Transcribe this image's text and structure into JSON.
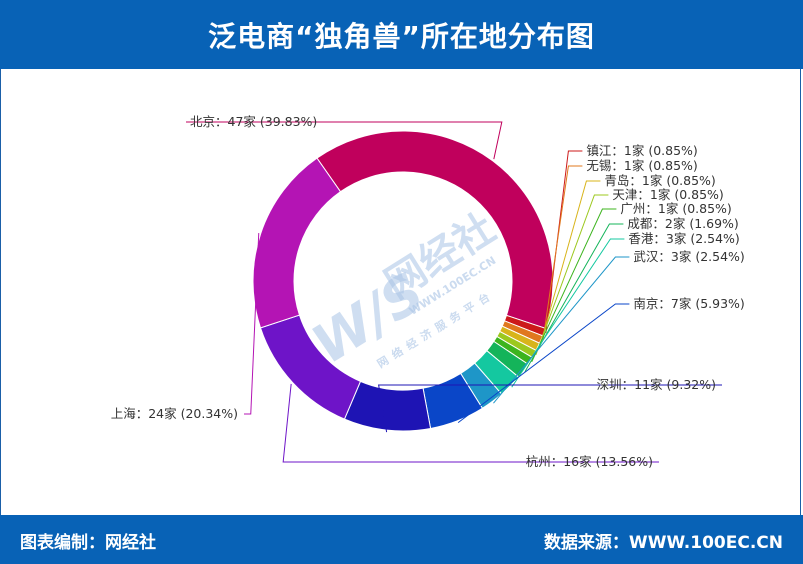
{
  "header": {
    "title": "泛电商“独角兽”所在地分布图"
  },
  "footer": {
    "left": "图表编制：网经社",
    "right": "数据来源：WWW.100EC.CN"
  },
  "watermark": {
    "logo": "W/S",
    "name": "网经社",
    "url": "WWW.100EC.CN",
    "slogan": "网络经济服务平台"
  },
  "colors": {
    "header_bg": "#0862b6",
    "footer_bg": "#0862b6"
  },
  "chart_data": {
    "type": "pie",
    "style": "donut",
    "unit": "家",
    "slices": [
      {
        "name": "北京",
        "value": 47,
        "percent": "39.83%",
        "color": "#c0005c",
        "label": "北京：47家 (39.83%)"
      },
      {
        "name": "镇江",
        "value": 1,
        "percent": "0.85%",
        "color": "#cc1a1a",
        "label": "镇江：1家 (0.85%)"
      },
      {
        "name": "无锡",
        "value": 1,
        "percent": "0.85%",
        "color": "#e0781e",
        "label": "无锡：1家 (0.85%)"
      },
      {
        "name": "青岛",
        "value": 1,
        "percent": "0.85%",
        "color": "#d8b41a",
        "label": "青岛：1家 (0.85%)"
      },
      {
        "name": "天津",
        "value": 1,
        "percent": "0.85%",
        "color": "#9cc81e",
        "label": "天津：1家 (0.85%)"
      },
      {
        "name": "广州",
        "value": 1,
        "percent": "0.85%",
        "color": "#3cb41e",
        "label": "广州：1家 (0.85%)"
      },
      {
        "name": "成都",
        "value": 2,
        "percent": "1.69%",
        "color": "#14b45a",
        "label": "成都：2家 (1.69%)"
      },
      {
        "name": "香港",
        "value": 3,
        "percent": "2.54%",
        "color": "#14c8a0",
        "label": "香港：3家 (2.54%)"
      },
      {
        "name": "武汉",
        "value": 3,
        "percent": "2.54%",
        "color": "#1e96c8",
        "label": "武汉：3家 (2.54%)"
      },
      {
        "name": "南京",
        "value": 7,
        "percent": "5.93%",
        "color": "#0a46c8",
        "label": "南京：7家 (5.93%)"
      },
      {
        "name": "深圳",
        "value": 11,
        "percent": "9.32%",
        "color": "#1e14b4",
        "label": "深圳：11家 (9.32%)"
      },
      {
        "name": "杭州",
        "value": 16,
        "percent": "13.56%",
        "color": "#6e14c8",
        "label": "杭州：16家 (13.56%)"
      },
      {
        "name": "上海",
        "value": 24,
        "percent": "20.34%",
        "color": "#b414b4",
        "label": "上海：24家 (20.34%)"
      }
    ]
  }
}
